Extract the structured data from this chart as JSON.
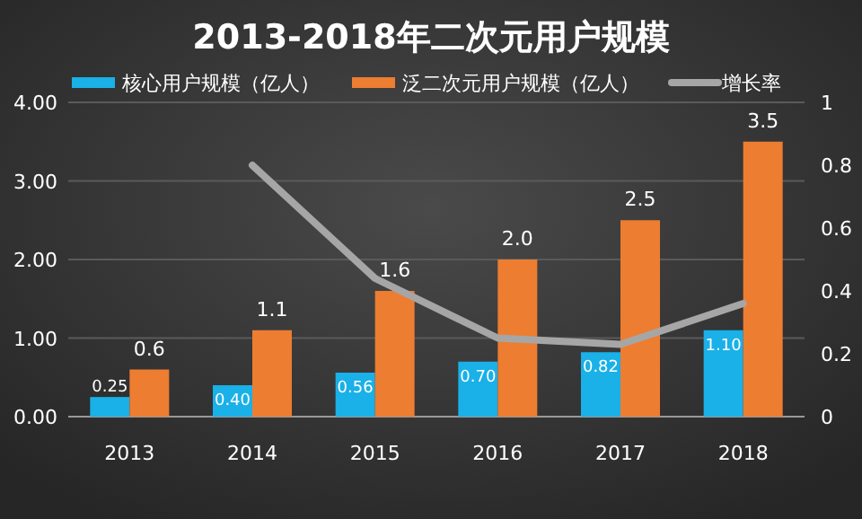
{
  "chart_data": {
    "type": "bar",
    "title": "2013-2018年二次元用户规模",
    "categories": [
      "2013",
      "2014",
      "2015",
      "2016",
      "2017",
      "2018"
    ],
    "series": [
      {
        "name": "核心用户规模（亿人）",
        "color": "#1ab0e8",
        "values": [
          0.25,
          0.4,
          0.56,
          0.7,
          0.82,
          1.1
        ],
        "value_labels": [
          "0.25",
          "0.40",
          "0.56",
          "0.70",
          "0.82",
          "1.10"
        ]
      },
      {
        "name": "泛二次元用户规模（亿人）",
        "color": "#ed7d31",
        "values": [
          0.6,
          1.1,
          1.6,
          2.0,
          2.5,
          3.5
        ],
        "value_labels": [
          "0.6",
          "1.1",
          "1.6",
          "2.0",
          "2.5",
          "3.5"
        ]
      },
      {
        "name": "增长率",
        "color": "#a6a6a6",
        "type": "line",
        "axis": "y2",
        "values": [
          null,
          0.8,
          0.44,
          0.25,
          0.23,
          0.36
        ]
      }
    ],
    "ylim": [
      0,
      4
    ],
    "yticks": [
      {
        "value": 0,
        "label": "0.00"
      },
      {
        "value": 1,
        "label": "1.00"
      },
      {
        "value": 2,
        "label": "2.00"
      },
      {
        "value": 3,
        "label": "3.00"
      },
      {
        "value": 4,
        "label": "4.00"
      }
    ],
    "y2lim": [
      0,
      1
    ],
    "y2ticks": [
      0,
      0.2,
      0.4,
      0.6,
      0.8,
      1
    ],
    "grid": "y",
    "legend": "top",
    "marker": "none"
  }
}
